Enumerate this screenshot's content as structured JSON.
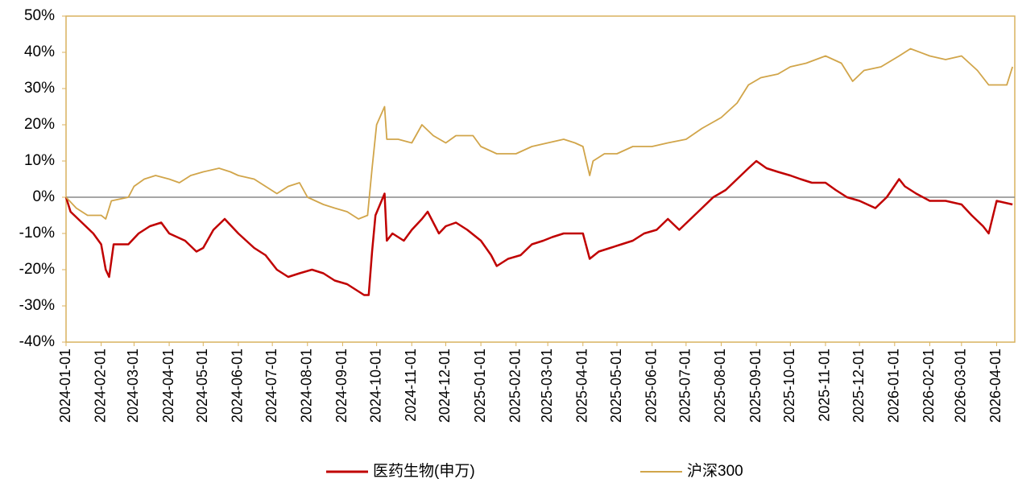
{
  "chart_data": {
    "type": "line",
    "xlim": [
      "2024-01-01",
      "2026-04-17"
    ],
    "xticks": [
      "2024-01-01",
      "2024-02-01",
      "2024-03-01",
      "2024-04-01",
      "2024-05-01",
      "2024-06-01",
      "2024-07-01",
      "2024-08-01",
      "2024-09-01",
      "2024-10-01",
      "2024-11-01",
      "2024-12-01",
      "2025-01-01",
      "2025-02-01",
      "2025-03-01",
      "2025-04-01",
      "2025-05-01",
      "2025-06-01",
      "2025-07-01",
      "2025-08-01",
      "2025-09-01",
      "2025-10-01",
      "2025-11-01",
      "2025-12-01",
      "2026-01-01",
      "2026-02-01",
      "2026-03-01",
      "2026-04-01"
    ],
    "ylim": [
      -40,
      50
    ],
    "yticks": [
      {
        "value": -40,
        "label": "-40%"
      },
      {
        "value": -30,
        "label": "-30%"
      },
      {
        "value": -20,
        "label": "-20%"
      },
      {
        "value": -10,
        "label": "-10%"
      },
      {
        "value": 0,
        "label": "0%"
      },
      {
        "value": 10,
        "label": "10%"
      },
      {
        "value": 20,
        "label": "20%"
      },
      {
        "value": 30,
        "label": "30%"
      },
      {
        "value": 40,
        "label": "40%"
      },
      {
        "value": 50,
        "label": "50%"
      }
    ],
    "legend": "bottom",
    "series": [
      {
        "name": "医药生物(申万)",
        "color": "#c00000",
        "x": [
          "2024-01-01",
          "2024-01-05",
          "2024-01-15",
          "2024-01-25",
          "2024-02-01",
          "2024-02-05",
          "2024-02-08",
          "2024-02-12",
          "2024-02-25",
          "2024-03-05",
          "2024-03-15",
          "2024-03-25",
          "2024-04-01",
          "2024-04-15",
          "2024-04-25",
          "2024-05-01",
          "2024-05-10",
          "2024-05-20",
          "2024-06-01",
          "2024-06-15",
          "2024-06-25",
          "2024-07-05",
          "2024-07-15",
          "2024-07-25",
          "2024-08-05",
          "2024-08-15",
          "2024-08-25",
          "2024-09-05",
          "2024-09-15",
          "2024-09-20",
          "2024-09-24",
          "2024-09-27",
          "2024-09-30",
          "2024-10-08",
          "2024-10-10",
          "2024-10-15",
          "2024-10-25",
          "2024-11-01",
          "2024-11-10",
          "2024-11-15",
          "2024-11-25",
          "2024-12-01",
          "2024-12-10",
          "2024-12-20",
          "2025-01-01",
          "2025-01-10",
          "2025-01-15",
          "2025-01-25",
          "2025-02-05",
          "2025-02-15",
          "2025-02-25",
          "2025-03-05",
          "2025-03-15",
          "2025-03-25",
          "2025-04-01",
          "2025-04-07",
          "2025-04-15",
          "2025-04-25",
          "2025-05-05",
          "2025-05-15",
          "2025-05-25",
          "2025-06-05",
          "2025-06-15",
          "2025-06-25",
          "2025-07-05",
          "2025-07-15",
          "2025-07-25",
          "2025-08-05",
          "2025-08-15",
          "2025-08-25",
          "2025-09-01",
          "2025-09-10",
          "2025-09-20",
          "2025-10-01",
          "2025-10-10",
          "2025-10-20",
          "2025-11-01",
          "2025-11-10",
          "2025-11-20",
          "2025-12-01",
          "2025-12-15",
          "2025-12-25",
          "2026-01-05",
          "2026-01-10",
          "2026-01-20",
          "2026-02-01",
          "2026-02-15",
          "2026-03-01",
          "2026-03-10",
          "2026-03-20",
          "2026-03-25",
          "2026-04-01",
          "2026-04-15"
        ],
        "values": [
          0,
          -4,
          -7,
          -10,
          -13,
          -20,
          -22,
          -13,
          -13,
          -10,
          -8,
          -7,
          -10,
          -12,
          -15,
          -14,
          -9,
          -6,
          -10,
          -14,
          -16,
          -20,
          -22,
          -21,
          -20,
          -21,
          -23,
          -24,
          -26,
          -27,
          -27,
          -15,
          -5,
          1,
          -12,
          -10,
          -12,
          -9,
          -6,
          -4,
          -10,
          -8,
          -7,
          -9,
          -12,
          -16,
          -19,
          -17,
          -16,
          -13,
          -12,
          -11,
          -10,
          -10,
          -10,
          -17,
          -15,
          -14,
          -13,
          -12,
          -10,
          -9,
          -6,
          -9,
          -6,
          -3,
          0,
          2,
          5,
          8,
          10,
          8,
          7,
          6,
          5,
          4,
          4,
          2,
          0,
          -1,
          -3,
          0,
          5,
          3,
          1,
          -1,
          -1,
          -2,
          -5,
          -8,
          -10,
          -1,
          -2
        ]
      },
      {
        "name": "沪深300",
        "color": "#d1a54a",
        "x": [
          "2024-01-01",
          "2024-01-10",
          "2024-01-20",
          "2024-02-01",
          "2024-02-05",
          "2024-02-10",
          "2024-02-25",
          "2024-03-01",
          "2024-03-10",
          "2024-03-20",
          "2024-04-01",
          "2024-04-10",
          "2024-04-20",
          "2024-05-01",
          "2024-05-15",
          "2024-05-25",
          "2024-06-01",
          "2024-06-15",
          "2024-06-25",
          "2024-07-05",
          "2024-07-15",
          "2024-07-25",
          "2024-08-01",
          "2024-08-15",
          "2024-08-25",
          "2024-09-05",
          "2024-09-15",
          "2024-09-23",
          "2024-09-27",
          "2024-10-01",
          "2024-10-08",
          "2024-10-10",
          "2024-10-20",
          "2024-11-01",
          "2024-11-10",
          "2024-11-20",
          "2024-12-01",
          "2024-12-10",
          "2024-12-25",
          "2025-01-01",
          "2025-01-15",
          "2025-02-01",
          "2025-02-15",
          "2025-03-01",
          "2025-03-15",
          "2025-03-25",
          "2025-04-01",
          "2025-04-07",
          "2025-04-10",
          "2025-04-20",
          "2025-05-01",
          "2025-05-15",
          "2025-06-01",
          "2025-06-15",
          "2025-07-01",
          "2025-07-15",
          "2025-08-01",
          "2025-08-15",
          "2025-08-25",
          "2025-09-05",
          "2025-09-20",
          "2025-10-01",
          "2025-10-15",
          "2025-11-01",
          "2025-11-15",
          "2025-11-25",
          "2025-12-05",
          "2025-12-20",
          "2026-01-05",
          "2026-01-15",
          "2026-02-01",
          "2026-02-15",
          "2026-03-01",
          "2026-03-15",
          "2026-03-25",
          "2026-04-10",
          "2026-04-15"
        ],
        "values": [
          0,
          -3,
          -5,
          -5,
          -6,
          -1,
          0,
          3,
          5,
          6,
          5,
          4,
          6,
          7,
          8,
          7,
          6,
          5,
          3,
          1,
          3,
          4,
          0,
          -2,
          -3,
          -4,
          -6,
          -5,
          8,
          20,
          25,
          16,
          16,
          15,
          20,
          17,
          15,
          17,
          17,
          14,
          12,
          12,
          14,
          15,
          16,
          15,
          14,
          6,
          10,
          12,
          12,
          14,
          14,
          15,
          16,
          19,
          22,
          26,
          31,
          33,
          34,
          36,
          37,
          39,
          37,
          32,
          35,
          36,
          39,
          41,
          39,
          38,
          39,
          35,
          31,
          31,
          36
        ]
      }
    ]
  }
}
